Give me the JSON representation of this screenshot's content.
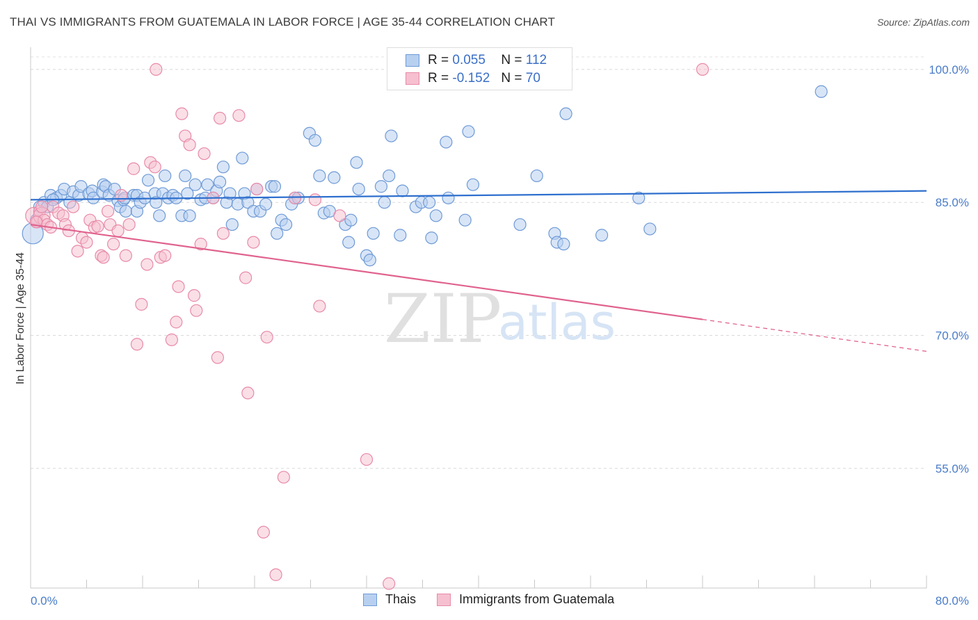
{
  "header": {
    "title": "THAI VS IMMIGRANTS FROM GUATEMALA IN LABOR FORCE | AGE 35-44 CORRELATION CHART",
    "source": "Source: ZipAtlas.com"
  },
  "watermark": {
    "zip": "ZIP",
    "atlas": "atlas"
  },
  "legend": {
    "thai": {
      "r_label": "R =",
      "r_value": "0.055",
      "n_label": "N =",
      "n_value": "112"
    },
    "guatemala": {
      "r_label": "R =",
      "r_value": "-0.152",
      "n_label": "N =",
      "n_value": "70"
    }
  },
  "bottom_legend": {
    "thai": "Thais",
    "guatemala": "Immigrants from Guatemala"
  },
  "colors": {
    "thai_fill": "#b8d0f0",
    "thai_stroke": "#6e9ad6",
    "thai_line": "#2e6fce",
    "guat_fill": "#f6c0d0",
    "guat_stroke": "#e88aa8",
    "guat_line": "#e0628e",
    "tick_label": "#4a7cc9"
  },
  "chart_data": {
    "type": "scatter",
    "xlabel": "",
    "ylabel": "In Labor Force | Age 35-44",
    "xlim": [
      0,
      80
    ],
    "ylim": [
      41.5,
      102.5
    ],
    "x_tick_labels": [
      {
        "value": 0,
        "label": "0.0%"
      },
      {
        "value": 80,
        "label": "80.0%"
      }
    ],
    "y_ticks": [
      {
        "value": 100,
        "label": "100.0%"
      },
      {
        "value": 85,
        "label": "85.0%"
      },
      {
        "value": 70,
        "label": "70.0%"
      },
      {
        "value": 55,
        "label": "55.0%"
      }
    ],
    "grid": true,
    "series": [
      {
        "name": "Thais",
        "r": 0.055,
        "n": 112,
        "trend": {
          "x": [
            0,
            80
          ],
          "y": [
            85.3,
            86.3
          ]
        },
        "points": [
          [
            0.2,
            81.5
          ],
          [
            0.8,
            84.5
          ],
          [
            1.2,
            85.0
          ],
          [
            1.5,
            84.5
          ],
          [
            1.8,
            85.8
          ],
          [
            2.3,
            85.5
          ],
          [
            2.7,
            85.8
          ],
          [
            3.0,
            86.5
          ],
          [
            3.5,
            85.0
          ],
          [
            3.8,
            86.2
          ],
          [
            4.3,
            85.8
          ],
          [
            4.5,
            86.8
          ],
          [
            5.2,
            86.0
          ],
          [
            5.5,
            86.3
          ],
          [
            5.6,
            85.5
          ],
          [
            6.4,
            86.2
          ],
          [
            6.5,
            87.0
          ],
          [
            6.7,
            86.8
          ],
          [
            7.0,
            85.8
          ],
          [
            7.5,
            86.5
          ],
          [
            7.8,
            85.2
          ],
          [
            8.0,
            84.5
          ],
          [
            8.3,
            85.3
          ],
          [
            8.4,
            85.5
          ],
          [
            8.5,
            84.0
          ],
          [
            9.2,
            85.8
          ],
          [
            9.5,
            85.8
          ],
          [
            9.5,
            84.0
          ],
          [
            9.8,
            85.0
          ],
          [
            10.2,
            85.5
          ],
          [
            10.5,
            87.5
          ],
          [
            11.1,
            86.0
          ],
          [
            11.2,
            85.0
          ],
          [
            11.5,
            83.5
          ],
          [
            11.8,
            86.0
          ],
          [
            12.0,
            88.0
          ],
          [
            12.3,
            85.5
          ],
          [
            12.7,
            85.8
          ],
          [
            13.0,
            85.5
          ],
          [
            13.5,
            83.5
          ],
          [
            13.8,
            88.0
          ],
          [
            14.0,
            86.0
          ],
          [
            14.2,
            83.5
          ],
          [
            14.7,
            87.0
          ],
          [
            15.2,
            85.3
          ],
          [
            15.6,
            85.5
          ],
          [
            15.8,
            87.0
          ],
          [
            16.3,
            85.5
          ],
          [
            16.6,
            86.3
          ],
          [
            16.9,
            87.3
          ],
          [
            17.2,
            89.0
          ],
          [
            17.5,
            85.0
          ],
          [
            17.8,
            86.0
          ],
          [
            18.0,
            82.5
          ],
          [
            18.5,
            84.8
          ],
          [
            18.9,
            90.0
          ],
          [
            19.1,
            86.0
          ],
          [
            19.4,
            85.0
          ],
          [
            19.9,
            84.0
          ],
          [
            20.2,
            86.5
          ],
          [
            20.5,
            84.0
          ],
          [
            21.0,
            84.8
          ],
          [
            21.5,
            86.8
          ],
          [
            21.8,
            86.8
          ],
          [
            22.0,
            81.5
          ],
          [
            22.4,
            83.0
          ],
          [
            22.8,
            82.5
          ],
          [
            23.3,
            84.8
          ],
          [
            23.6,
            85.5
          ],
          [
            23.9,
            85.5
          ],
          [
            24.9,
            92.8
          ],
          [
            25.4,
            92.0
          ],
          [
            25.8,
            88.0
          ],
          [
            26.2,
            83.8
          ],
          [
            26.7,
            84.0
          ],
          [
            27.1,
            87.8
          ],
          [
            28.1,
            82.5
          ],
          [
            28.4,
            80.5
          ],
          [
            28.6,
            83.0
          ],
          [
            29.1,
            89.5
          ],
          [
            29.3,
            86.5
          ],
          [
            30.0,
            79.0
          ],
          [
            30.3,
            78.5
          ],
          [
            30.6,
            81.5
          ],
          [
            31.3,
            86.8
          ],
          [
            31.6,
            85.0
          ],
          [
            32.0,
            88.0
          ],
          [
            32.2,
            92.5
          ],
          [
            33.0,
            81.3
          ],
          [
            33.2,
            86.3
          ],
          [
            34.4,
            84.5
          ],
          [
            34.9,
            85.0
          ],
          [
            35.6,
            85.0
          ],
          [
            35.8,
            81.0
          ],
          [
            36.2,
            83.5
          ],
          [
            37.1,
            91.8
          ],
          [
            37.3,
            85.5
          ],
          [
            38.8,
            83.0
          ],
          [
            39.1,
            93.0
          ],
          [
            39.5,
            87.0
          ],
          [
            43.7,
            82.5
          ],
          [
            45.2,
            88.0
          ],
          [
            46.8,
            81.5
          ],
          [
            47.0,
            80.5
          ],
          [
            47.6,
            80.3
          ],
          [
            47.8,
            95.0
          ],
          [
            51.0,
            81.3
          ],
          [
            54.3,
            85.5
          ],
          [
            55.3,
            82.0
          ],
          [
            70.6,
            97.5
          ],
          [
            0.5,
            83.0
          ],
          [
            2.0,
            85.3
          ]
        ]
      },
      {
        "name": "Immigrants from Guatemala",
        "r": -0.152,
        "n": 70,
        "trend": {
          "x": [
            0,
            60
          ],
          "y": [
            82.5,
            71.8
          ]
        },
        "trend_dashed": {
          "x": [
            60,
            80
          ],
          "y": [
            71.8,
            68.2
          ]
        },
        "points": [
          [
            0.3,
            83.5
          ],
          [
            0.6,
            82.8
          ],
          [
            0.8,
            84.0
          ],
          [
            1.0,
            83.5
          ],
          [
            1.2,
            83.0
          ],
          [
            1.5,
            82.5
          ],
          [
            1.8,
            82.2
          ],
          [
            2.0,
            84.5
          ],
          [
            2.5,
            83.8
          ],
          [
            2.9,
            83.5
          ],
          [
            3.1,
            82.5
          ],
          [
            3.4,
            81.8
          ],
          [
            3.8,
            84.5
          ],
          [
            4.2,
            79.5
          ],
          [
            4.6,
            81.0
          ],
          [
            5.0,
            80.5
          ],
          [
            5.3,
            83.0
          ],
          [
            5.7,
            82.2
          ],
          [
            6.0,
            82.3
          ],
          [
            6.3,
            79.0
          ],
          [
            6.5,
            78.8
          ],
          [
            6.9,
            84.0
          ],
          [
            7.1,
            82.5
          ],
          [
            7.4,
            80.3
          ],
          [
            7.8,
            81.8
          ],
          [
            8.1,
            85.8
          ],
          [
            8.5,
            79.0
          ],
          [
            8.8,
            82.5
          ],
          [
            9.2,
            88.8
          ],
          [
            9.5,
            69.0
          ],
          [
            9.9,
            73.5
          ],
          [
            10.4,
            78.0
          ],
          [
            10.7,
            89.5
          ],
          [
            11.1,
            89.0
          ],
          [
            11.6,
            78.8
          ],
          [
            12.0,
            79.0
          ],
          [
            12.6,
            69.5
          ],
          [
            13.0,
            71.5
          ],
          [
            13.2,
            75.5
          ],
          [
            13.5,
            95.0
          ],
          [
            13.8,
            92.5
          ],
          [
            14.2,
            91.5
          ],
          [
            14.6,
            74.5
          ],
          [
            14.8,
            72.8
          ],
          [
            15.2,
            80.3
          ],
          [
            15.5,
            90.5
          ],
          [
            16.3,
            85.5
          ],
          [
            16.7,
            67.5
          ],
          [
            16.9,
            94.5
          ],
          [
            17.2,
            81.5
          ],
          [
            18.6,
            94.8
          ],
          [
            19.2,
            76.5
          ],
          [
            19.4,
            63.5
          ],
          [
            19.9,
            80.5
          ],
          [
            20.2,
            86.5
          ],
          [
            20.8,
            47.8
          ],
          [
            21.1,
            69.8
          ],
          [
            21.9,
            43.0
          ],
          [
            22.6,
            54.0
          ],
          [
            23.6,
            85.5
          ],
          [
            25.4,
            85.3
          ],
          [
            25.8,
            73.3
          ],
          [
            27.6,
            83.5
          ],
          [
            30.0,
            56.0
          ],
          [
            32.0,
            42.0
          ],
          [
            37.5,
            100.0
          ],
          [
            60.0,
            100.0
          ],
          [
            11.2,
            100.0
          ],
          [
            1.0,
            84.5
          ],
          [
            0.5,
            82.8
          ]
        ]
      }
    ]
  }
}
